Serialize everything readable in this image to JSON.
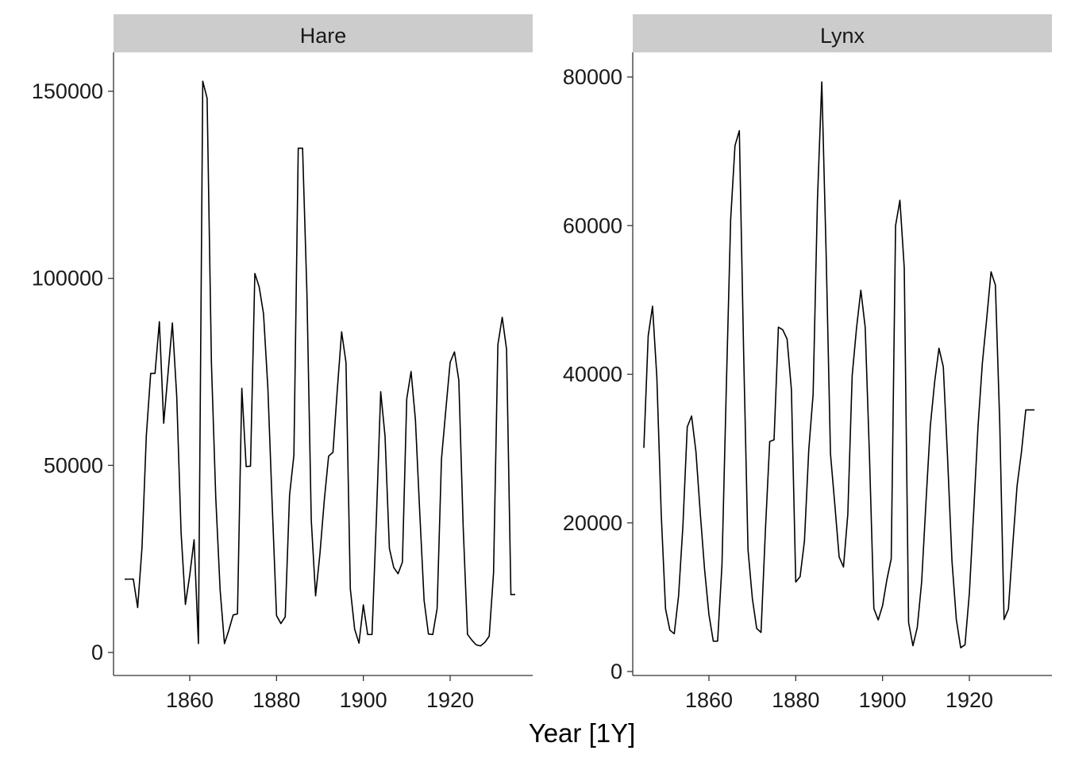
{
  "chart_data": [
    {
      "type": "line",
      "facet": "Hare",
      "xlabel": "Year [1Y]",
      "ylabel": "",
      "xlim": [
        1845,
        1935
      ],
      "ylim": [
        -5000,
        160000
      ],
      "xticks": [
        1860,
        1880,
        1900,
        1920
      ],
      "yticks": [
        0,
        50000,
        100000,
        150000
      ],
      "grid": false,
      "x": [
        1845,
        1846,
        1847,
        1848,
        1849,
        1850,
        1851,
        1852,
        1853,
        1854,
        1855,
        1856,
        1857,
        1858,
        1859,
        1860,
        1861,
        1862,
        1863,
        1864,
        1865,
        1866,
        1867,
        1868,
        1869,
        1870,
        1871,
        1872,
        1873,
        1874,
        1875,
        1876,
        1877,
        1878,
        1879,
        1880,
        1881,
        1882,
        1883,
        1884,
        1885,
        1886,
        1887,
        1888,
        1889,
        1890,
        1891,
        1892,
        1893,
        1894,
        1895,
        1896,
        1897,
        1898,
        1899,
        1900,
        1901,
        1902,
        1903,
        1904,
        1905,
        1906,
        1907,
        1908,
        1909,
        1910,
        1911,
        1912,
        1913,
        1914,
        1915,
        1916,
        1917,
        1918,
        1919,
        1920,
        1921,
        1922,
        1923,
        1924,
        1925,
        1926,
        1927,
        1928,
        1929,
        1930,
        1931,
        1932,
        1933,
        1934,
        1935
      ],
      "y": [
        19580,
        19600,
        19610,
        11990,
        28040,
        58000,
        74600,
        74600,
        88400,
        61280,
        74670,
        88060,
        68510,
        32190,
        12860,
        20640,
        30130,
        2400,
        152700,
        148140,
        77290,
        41250,
        16720,
        2350,
        5920,
        10010,
        10320,
        70620,
        49690,
        49790,
        101300,
        97690,
        90550,
        70760,
        39430,
        9850,
        7730,
        9500,
        42030,
        52740,
        134800,
        134800,
        96110,
        35400,
        15120,
        26400,
        40660,
        52500,
        53500,
        70260,
        85700,
        77490,
        17000,
        6230,
        2480,
        12720,
        4800,
        4810,
        35700,
        69700,
        57800,
        27820,
        22710,
        21040,
        24130,
        67760,
        75100,
        62170,
        37340,
        13910,
        4920,
        4800,
        11760,
        51640,
        64780,
        77560,
        80340,
        72740,
        33740,
        4840,
        3300,
        2040,
        1750,
        2700,
        4350,
        21240,
        82270,
        89590,
        81050,
        15470,
        15470
      ],
      "series": [
        {
          "values_ref": "y"
        }
      ]
    },
    {
      "type": "line",
      "facet": "Lynx",
      "xlabel": "Year [1Y]",
      "ylabel": "",
      "xlim": [
        1845,
        1935
      ],
      "ylim": [
        0,
        83000
      ],
      "xticks": [
        1860,
        1880,
        1900,
        1920
      ],
      "yticks": [
        0,
        20000,
        40000,
        60000,
        80000
      ],
      "grid": false,
      "x": [
        1845,
        1846,
        1847,
        1848,
        1849,
        1850,
        1851,
        1852,
        1853,
        1854,
        1855,
        1856,
        1857,
        1858,
        1859,
        1860,
        1861,
        1862,
        1863,
        1864,
        1865,
        1866,
        1867,
        1868,
        1869,
        1870,
        1871,
        1872,
        1873,
        1874,
        1875,
        1876,
        1877,
        1878,
        1879,
        1880,
        1881,
        1882,
        1883,
        1884,
        1885,
        1886,
        1887,
        1888,
        1889,
        1890,
        1891,
        1892,
        1893,
        1894,
        1895,
        1896,
        1897,
        1898,
        1899,
        1900,
        1901,
        1902,
        1903,
        1904,
        1905,
        1906,
        1907,
        1908,
        1909,
        1910,
        1911,
        1912,
        1913,
        1914,
        1915,
        1916,
        1917,
        1918,
        1919,
        1920,
        1921,
        1922,
        1923,
        1924,
        1925,
        1926,
        1927,
        1928,
        1929,
        1930,
        1931,
        1932,
        1933,
        1934,
        1935
      ],
      "y": [
        30090,
        45150,
        49150,
        39520,
        21230,
        8420,
        5560,
        5080,
        10170,
        19600,
        32910,
        34380,
        29590,
        21300,
        13690,
        7650,
        4080,
        4090,
        14330,
        38220,
        60780,
        70770,
        72770,
        42680,
        16390,
        9830,
        5800,
        5260,
        18910,
        30950,
        31180,
        46340,
        45990,
        44740,
        37920,
        12050,
        12760,
        17540,
        29830,
        37300,
        63470,
        79340,
        56260,
        29300,
        22480,
        15420,
        14060,
        21200,
        39800,
        46200,
        51310,
        46330,
        28740,
        8470,
        6940,
        8860,
        12360,
        15160,
        60000,
        63410,
        54320,
        6600,
        3470,
        5920,
        12000,
        22700,
        33000,
        38950,
        43500,
        41000,
        28500,
        14850,
        7000,
        3200,
        3600,
        10500,
        21500,
        33000,
        41500,
        47500,
        53780,
        52000,
        33500,
        7000,
        8400,
        17000,
        25000,
        29500,
        35200,
        35200,
        35200
      ]
    }
  ],
  "panels": {
    "hare": {
      "strip_label": "Hare"
    },
    "lynx": {
      "strip_label": "Lynx"
    }
  },
  "axis": {
    "x_title": "Year [1Y]"
  }
}
